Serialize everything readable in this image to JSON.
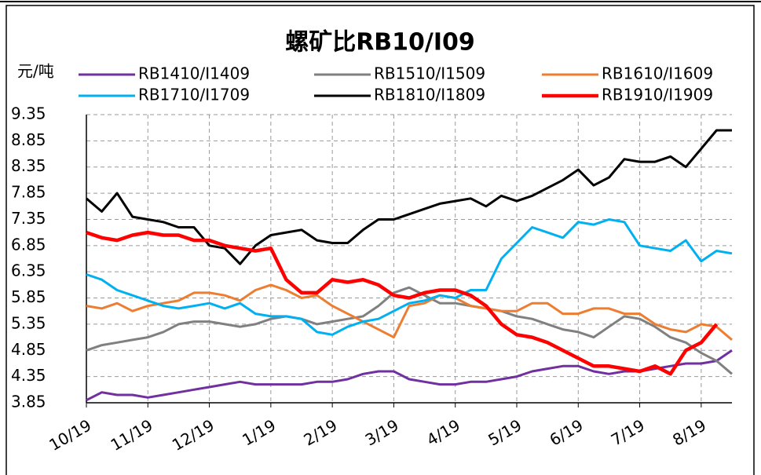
{
  "chart_data": {
    "type": "line",
    "title": "螺矿比RB10/I09",
    "y_label": "元/吨",
    "categories": [
      "10/19",
      null,
      null,
      null,
      "11/19",
      null,
      null,
      null,
      "12/19",
      null,
      null,
      null,
      "1/19",
      null,
      null,
      null,
      "2/19",
      null,
      null,
      null,
      "3/19",
      null,
      null,
      null,
      "4/19",
      null,
      null,
      null,
      "5/19",
      null,
      null,
      null,
      "6/19",
      null,
      null,
      null,
      "7/19",
      null,
      null,
      null,
      "8/19",
      null,
      null
    ],
    "ylim": [
      3.85,
      9.35
    ],
    "yticks": [
      3.85,
      4.35,
      4.85,
      5.35,
      5.85,
      6.35,
      6.85,
      7.35,
      7.85,
      8.35,
      8.85,
      9.35
    ],
    "grid": true,
    "series": [
      {
        "name": "RB1410/I1409",
        "color": "#7030a0",
        "values": [
          3.9,
          4.05,
          4.0,
          4.0,
          3.95,
          4.0,
          4.05,
          4.1,
          4.15,
          4.2,
          4.25,
          4.2,
          4.2,
          4.2,
          4.2,
          4.25,
          4.25,
          4.3,
          4.4,
          4.45,
          4.45,
          4.3,
          4.25,
          4.2,
          4.2,
          4.25,
          4.25,
          4.3,
          4.35,
          4.45,
          4.5,
          4.55,
          4.55,
          4.45,
          4.4,
          4.45,
          4.45,
          4.5,
          4.55,
          4.6,
          4.6,
          4.65,
          4.85
        ]
      },
      {
        "name": "RB1510/I1509",
        "color": "#808080",
        "values": [
          4.85,
          4.95,
          5.0,
          5.05,
          5.1,
          5.2,
          5.35,
          5.4,
          5.4,
          5.35,
          5.3,
          5.35,
          5.45,
          5.5,
          5.45,
          5.35,
          5.4,
          5.45,
          5.5,
          5.7,
          5.95,
          6.05,
          5.9,
          5.75,
          5.75,
          5.7,
          5.65,
          5.6,
          5.5,
          5.45,
          5.35,
          5.25,
          5.2,
          5.1,
          5.3,
          5.5,
          5.45,
          5.3,
          5.1,
          5.0,
          4.8,
          4.65,
          4.4
        ]
      },
      {
        "name": "RB1610/I1609",
        "color": "#ed7d31",
        "values": [
          5.7,
          5.65,
          5.75,
          5.6,
          5.7,
          5.75,
          5.8,
          5.95,
          5.95,
          5.9,
          5.8,
          6.0,
          6.1,
          6.0,
          5.85,
          5.9,
          5.7,
          5.55,
          5.4,
          5.25,
          5.1,
          5.7,
          5.75,
          5.9,
          5.85,
          5.7,
          5.65,
          5.6,
          5.6,
          5.75,
          5.75,
          5.55,
          5.55,
          5.65,
          5.65,
          5.55,
          5.55,
          5.35,
          5.25,
          5.2,
          5.35,
          5.3,
          5.05
        ]
      },
      {
        "name": "RB1710/I1709",
        "color": "#00b0f0",
        "values": [
          6.3,
          6.2,
          6.0,
          5.9,
          5.8,
          5.7,
          5.65,
          5.7,
          5.75,
          5.65,
          5.75,
          5.55,
          5.5,
          5.5,
          5.45,
          5.2,
          5.15,
          5.3,
          5.4,
          5.45,
          5.6,
          5.75,
          5.8,
          5.9,
          5.85,
          6.0,
          6.0,
          6.6,
          6.9,
          7.2,
          7.1,
          7.0,
          7.3,
          7.25,
          7.35,
          7.3,
          6.85,
          6.8,
          6.75,
          6.95,
          6.55,
          6.75,
          6.7
        ]
      },
      {
        "name": "RB1810/I1809",
        "color": "#000000",
        "values": [
          7.75,
          7.5,
          7.85,
          7.4,
          7.35,
          7.3,
          7.2,
          7.2,
          6.85,
          6.8,
          6.5,
          6.85,
          7.05,
          7.1,
          7.15,
          6.95,
          6.9,
          6.9,
          7.15,
          7.35,
          7.35,
          7.45,
          7.55,
          7.65,
          7.7,
          7.75,
          7.6,
          7.8,
          7.7,
          7.8,
          7.95,
          8.1,
          8.3,
          8.0,
          8.15,
          8.5,
          8.45,
          8.45,
          8.55,
          8.35,
          8.7,
          9.05,
          9.05
        ]
      },
      {
        "name": "RB1910/I1909",
        "color": "#ff0000",
        "values": [
          7.1,
          7.0,
          6.95,
          7.05,
          7.1,
          7.05,
          7.05,
          6.95,
          6.95,
          6.85,
          6.8,
          6.75,
          6.8,
          6.2,
          5.95,
          5.95,
          6.2,
          6.15,
          6.2,
          6.1,
          5.9,
          5.85,
          5.95,
          6.0,
          6.0,
          5.9,
          5.7,
          5.35,
          5.15,
          5.1,
          5.0,
          4.85,
          4.7,
          4.55,
          4.55,
          4.5,
          4.45,
          4.55,
          4.4,
          4.85,
          5.0,
          5.35,
          null
        ]
      }
    ]
  }
}
